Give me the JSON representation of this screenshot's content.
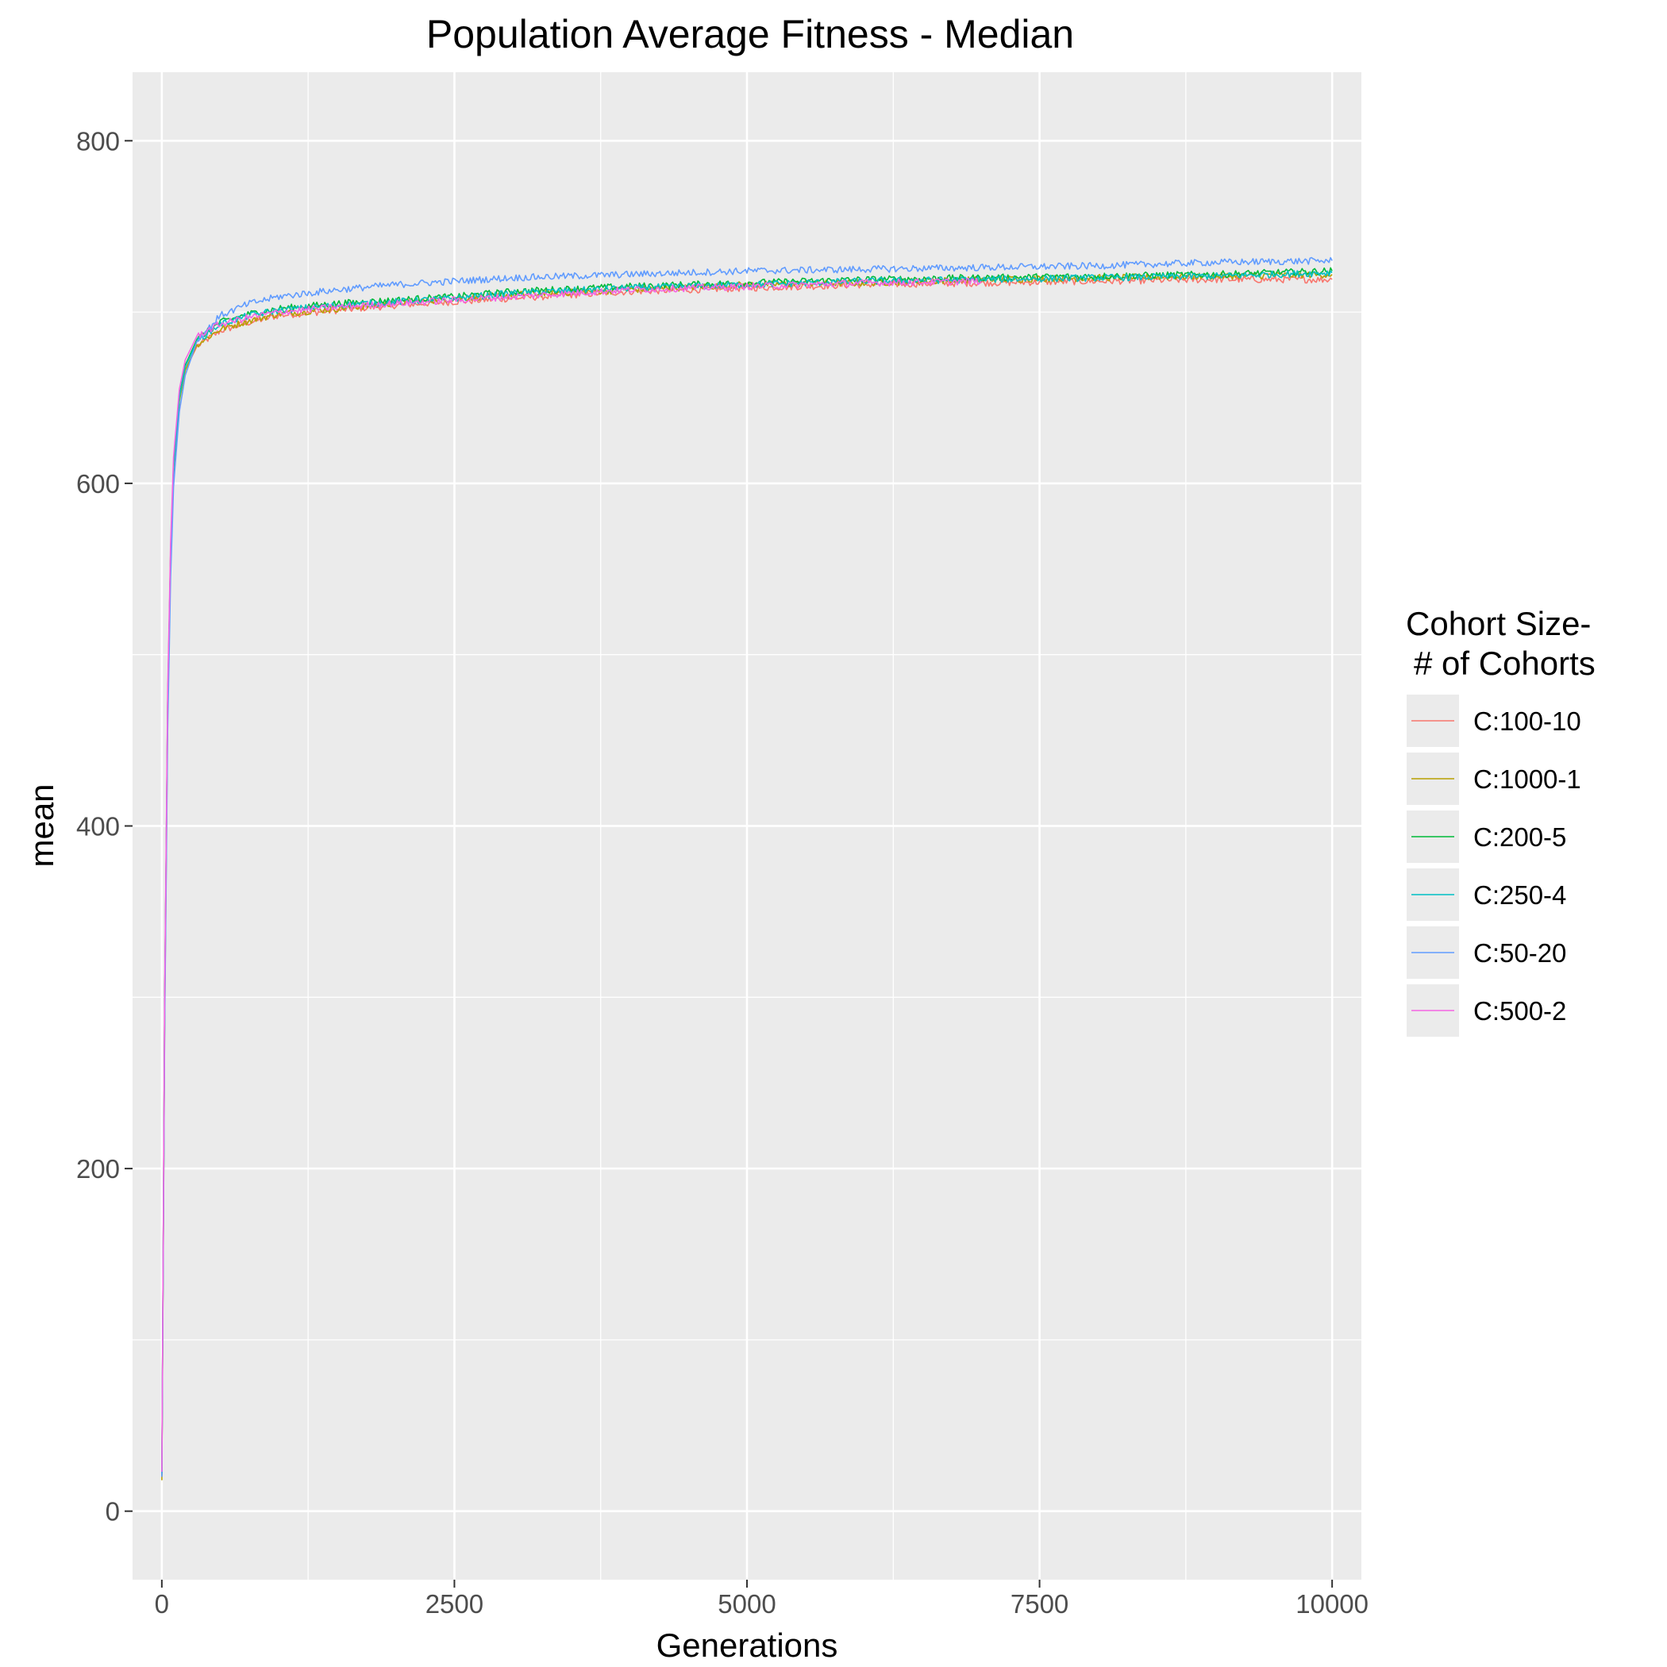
{
  "chart_data": {
    "type": "line",
    "title": "Population Average Fitness - Median",
    "xlabel": "Generations",
    "ylabel": "mean",
    "xlim": [
      -250,
      10250
    ],
    "ylim": [
      -40,
      840
    ],
    "x_ticks": [
      0,
      2500,
      5000,
      7500,
      10000
    ],
    "x_tick_labels": [
      "0",
      "2500",
      "5000",
      "7500",
      "10000"
    ],
    "y_ticks": [
      0,
      200,
      400,
      600,
      800
    ],
    "y_tick_labels": [
      "0",
      "200",
      "400",
      "600",
      "800"
    ],
    "grid": true,
    "legend": {
      "title_lines": [
        "Cohort Size-",
        "# of Cohorts"
      ],
      "placement": "right"
    },
    "series": [
      {
        "name": "C:100-10",
        "color": "#f8766d",
        "x": [
          0,
          25,
          50,
          75,
          100,
          150,
          200,
          300,
          500,
          750,
          1000,
          1500,
          2000,
          2500,
          3000,
          4000,
          5000,
          6000,
          7000,
          8000,
          9000,
          10000
        ],
        "y": [
          20,
          300,
          470,
          560,
          610,
          650,
          666,
          680,
          689,
          694,
          698,
          701,
          704,
          706,
          708,
          712,
          714,
          716,
          717,
          718,
          719,
          719
        ]
      },
      {
        "name": "C:1000-1",
        "color": "#b79f00",
        "x": [
          0,
          25,
          50,
          75,
          100,
          150,
          200,
          300,
          500,
          750,
          1000,
          1500,
          2000,
          2500,
          3000,
          4000,
          5000,
          6000,
          7000,
          8000,
          9000,
          10000
        ],
        "y": [
          18,
          290,
          465,
          555,
          607,
          648,
          666,
          681,
          690,
          695,
          699,
          702,
          705,
          708,
          710,
          713,
          716,
          717,
          719,
          720,
          721,
          722
        ]
      },
      {
        "name": "C:200-5",
        "color": "#00ba38",
        "x": [
          0,
          25,
          50,
          75,
          100,
          150,
          200,
          300,
          500,
          750,
          1000,
          1500,
          2000,
          2500,
          3000,
          4000,
          5000,
          6000,
          7000,
          8000,
          9000,
          10000
        ],
        "y": [
          22,
          300,
          472,
          560,
          610,
          651,
          669,
          684,
          694,
          699,
          702,
          705,
          707,
          709,
          712,
          715,
          717,
          719,
          720,
          721,
          722,
          724
        ]
      },
      {
        "name": "C:250-4",
        "color": "#00bfc4",
        "x": [
          0,
          25,
          50,
          75,
          100,
          150,
          200,
          300,
          500,
          750,
          1000,
          1500,
          2000,
          2500,
          3000,
          4000,
          5000,
          6000,
          7000,
          8000,
          9000,
          10000
        ],
        "y": [
          21,
          298,
          470,
          558,
          609,
          650,
          668,
          683,
          693,
          698,
          701,
          704,
          706,
          708,
          711,
          714,
          716,
          718,
          719,
          720,
          721,
          723
        ]
      },
      {
        "name": "C:50-20",
        "color": "#619cff",
        "x": [
          0,
          25,
          50,
          75,
          100,
          150,
          200,
          300,
          500,
          750,
          1000,
          1500,
          2000,
          2500,
          3000,
          4000,
          5000,
          6000,
          7000,
          8000,
          9000,
          10000
        ],
        "y": [
          20,
          285,
          455,
          545,
          598,
          642,
          663,
          683,
          698,
          705,
          709,
          713,
          716,
          718,
          720,
          722,
          724,
          725,
          726,
          727,
          729,
          730
        ]
      },
      {
        "name": "C:500-2",
        "color": "#f564e3",
        "x": [
          0,
          25,
          50,
          75,
          100,
          150,
          200,
          300,
          500,
          750,
          1000,
          1500,
          2000,
          2500,
          3000,
          4000,
          5000,
          6000,
          7000
        ],
        "y": [
          23,
          305,
          478,
          565,
          615,
          655,
          672,
          686,
          693,
          697,
          700,
          703,
          705,
          707,
          709,
          713,
          715,
          717,
          718
        ]
      }
    ]
  }
}
